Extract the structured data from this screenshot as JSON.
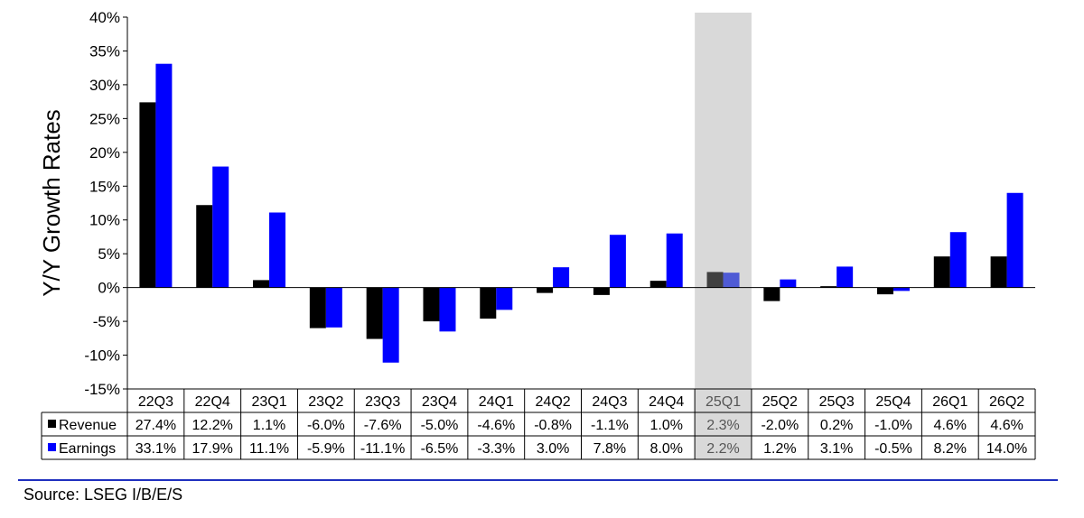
{
  "colors": {
    "revenue": "#000000",
    "earnings": "#0000ff",
    "highlight": "#d9d9d9",
    "highlight_revenue": "#404040",
    "highlight_earnings": "#4f5bd5",
    "rule": "#1f2fbf"
  },
  "source": "Source: LSEG I/B/E/S",
  "chart_data": {
    "type": "bar",
    "ylabel": "Y/Y Growth Rates",
    "xlabel": "",
    "title": "",
    "ylim": [
      -15,
      40
    ],
    "yticks": [
      -15,
      -10,
      -5,
      0,
      5,
      10,
      15,
      20,
      25,
      30,
      35,
      40
    ],
    "ytick_labels": [
      "-15%",
      "-10%",
      "-5%",
      "0%",
      "5%",
      "10%",
      "15%",
      "20%",
      "25%",
      "30%",
      "35%",
      "40%"
    ],
    "categories": [
      "22Q3",
      "22Q4",
      "23Q1",
      "23Q2",
      "23Q3",
      "23Q4",
      "24Q1",
      "24Q2",
      "24Q3",
      "24Q4",
      "25Q1",
      "25Q2",
      "25Q3",
      "25Q4",
      "26Q1",
      "26Q2"
    ],
    "highlight_category": "25Q1",
    "legend_placement": "table-rows",
    "series": [
      {
        "name": "Revenue",
        "values": [
          27.4,
          12.2,
          1.1,
          -6.0,
          -7.6,
          -5.0,
          -4.6,
          -0.8,
          -1.1,
          1.0,
          2.3,
          -2.0,
          0.2,
          -1.0,
          4.6,
          4.6
        ],
        "labels": [
          "27.4%",
          "12.2%",
          "1.1%",
          "-6.0%",
          "-7.6%",
          "-5.0%",
          "-4.6%",
          "-0.8%",
          "-1.1%",
          "1.0%",
          "2.3%",
          "-2.0%",
          "0.2%",
          "-1.0%",
          "4.6%",
          "4.6%"
        ]
      },
      {
        "name": "Earnings",
        "values": [
          33.1,
          17.9,
          11.1,
          -5.9,
          -11.1,
          -6.5,
          -3.3,
          3.0,
          7.8,
          8.0,
          2.2,
          1.2,
          3.1,
          -0.5,
          8.2,
          14.0
        ],
        "labels": [
          "33.1%",
          "17.9%",
          "11.1%",
          "-5.9%",
          "-11.1%",
          "-6.5%",
          "-3.3%",
          "3.0%",
          "7.8%",
          "8.0%",
          "2.2%",
          "1.2%",
          "3.1%",
          "-0.5%",
          "8.2%",
          "14.0%"
        ]
      }
    ]
  }
}
